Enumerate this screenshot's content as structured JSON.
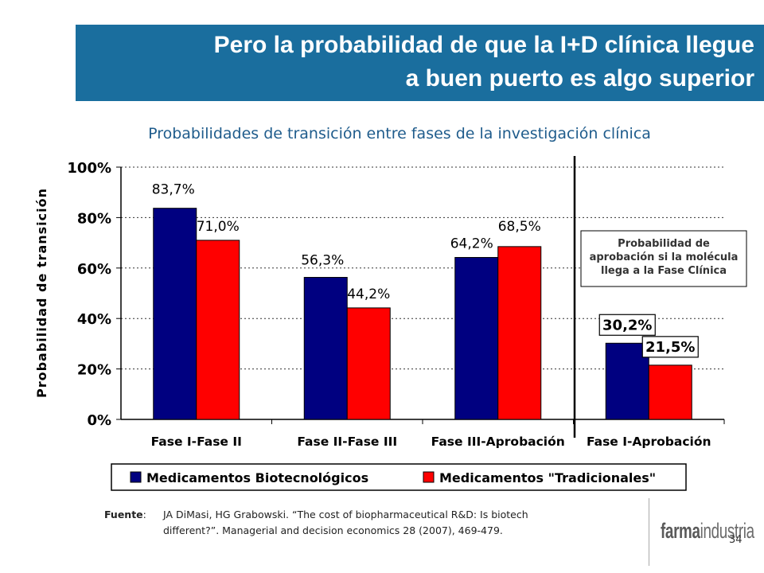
{
  "title": {
    "line1": "Pero la probabilidad de que la I+D clínica llegue",
    "line2": "a buen puerto es algo superior"
  },
  "subtitle": "Probabilidades de transición entre fases de la investigación clínica",
  "chart_data": {
    "type": "bar",
    "ylabel": "Probabilidad de transición",
    "ylim": [
      0,
      100
    ],
    "yticks": [
      0,
      20,
      40,
      60,
      80,
      100
    ],
    "ytick_labels": [
      "0%",
      "20%",
      "40%",
      "60%",
      "80%",
      "100%"
    ],
    "grid": true,
    "categories": [
      "Fase I-Fase II",
      "Fase II-Fase III",
      "Fase III-Aprobación",
      "Fase I-Aprobación"
    ],
    "series": [
      {
        "name": "Medicamentos Biotecnológicos",
        "color": "#000080",
        "values": [
          83.7,
          56.3,
          64.2,
          30.2
        ],
        "labels": [
          "83,7%",
          "56,3%",
          "64,2%",
          "30,2%"
        ]
      },
      {
        "name": "Medicamentos \"Tradicionales\"",
        "color": "#ff0000",
        "values": [
          71.0,
          44.2,
          68.5,
          21.5
        ],
        "labels": [
          "71,0%",
          "44,2%",
          "68,5%",
          "21,5%"
        ]
      }
    ],
    "annotation": {
      "line1": "Probabilidad de",
      "line2": "aprobación si la molécula",
      "line3": "llega a la Fase Clínica"
    },
    "legend_position": "bottom"
  },
  "source": {
    "label": "Fuente",
    "colon": ":",
    "line1": "JA DiMasi, HG Grabowski. “The cost of biopharmaceutical R&D: Is biotech",
    "line2": "different?”. Managerial and decision economics 28 (2007), 469-479."
  },
  "logo": {
    "bold": "farma",
    "light": "industria"
  },
  "page_number": "34"
}
